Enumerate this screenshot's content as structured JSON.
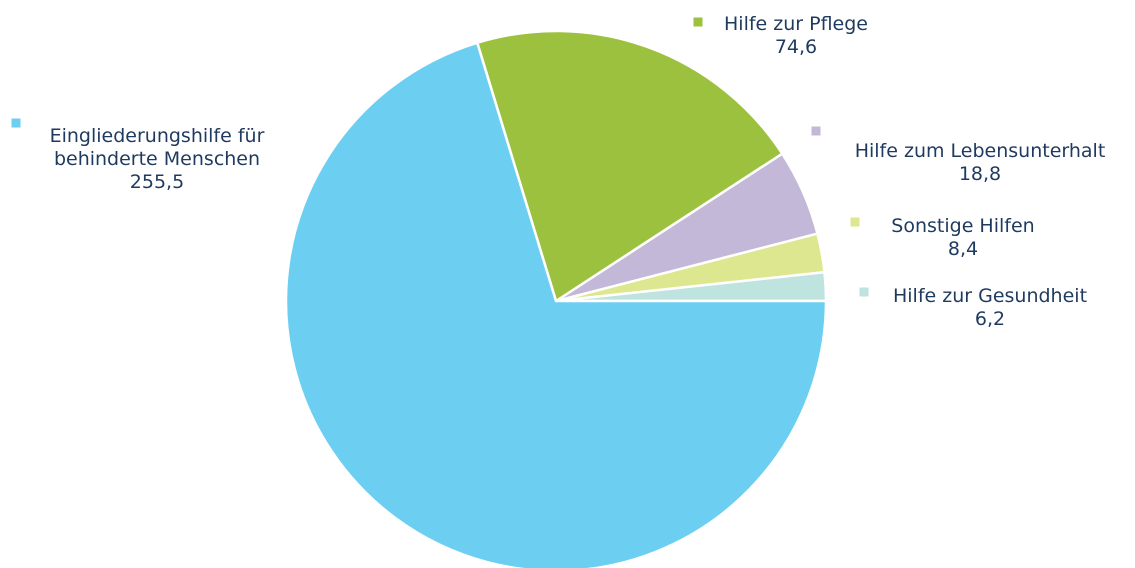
{
  "chart_data": {
    "type": "pie",
    "title": "",
    "legend_placement": "outside labels with colored markers",
    "slices": [
      {
        "name_lines": [
          "Hilfe zur Gesundheit"
        ],
        "value_label": "6,2",
        "value": 6.2,
        "color": "#bfe3df"
      },
      {
        "name_lines": [
          "Eingliederungshilfe für",
          "behinderte Menschen"
        ],
        "value_label": "255,5",
        "value": 255.5,
        "color": "#6ccff2"
      },
      {
        "name_lines": [
          "Hilfe zur Pflege"
        ],
        "value_label": "74,6",
        "value": 74.6,
        "color": "#9cc13f"
      },
      {
        "name_lines": [
          "Hilfe zum Lebensunterhalt"
        ],
        "value_label": "18,8",
        "value": 18.8,
        "color": "#c3b8d8"
      },
      {
        "name_lines": [
          "Sonstige Hilfen"
        ],
        "value_label": "8,4",
        "value": 8.4,
        "color": "#dde78f"
      }
    ]
  }
}
